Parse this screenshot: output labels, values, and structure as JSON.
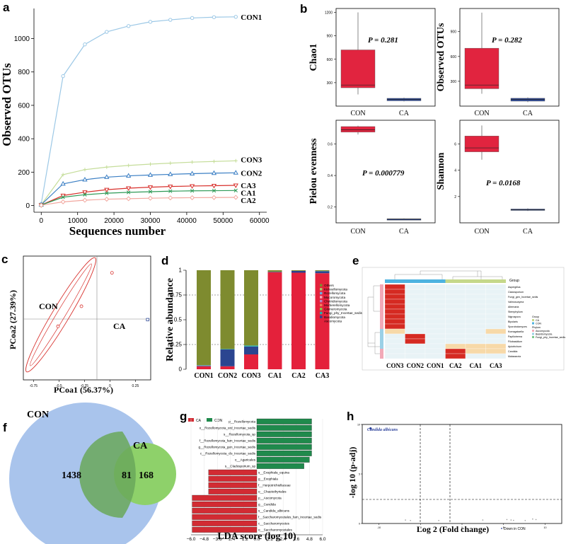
{
  "panel_letters": [
    "a",
    "b",
    "c",
    "d",
    "e",
    "f",
    "g",
    "h"
  ],
  "chart_data": [
    {
      "panel": "a",
      "type": "line",
      "xlabel": "Sequences number",
      "ylabel": "Observed OTUs",
      "xlim": [
        -2000,
        62000
      ],
      "ylim": [
        -40,
        1180
      ],
      "xticks": [
        "0",
        "10000",
        "20000",
        "30000",
        "40000",
        "50000",
        "60000"
      ],
      "yticks": [
        "0",
        "200",
        "400",
        "600",
        "800",
        "1000"
      ],
      "x": [
        0,
        6000,
        12000,
        18000,
        24000,
        30000,
        35500,
        41500,
        47500,
        53500
      ],
      "series": [
        {
          "name": "CON1",
          "color": "#9cc8e6",
          "marker": "circle",
          "values": [
            10,
            775,
            965,
            1040,
            1075,
            1100,
            1112,
            1123,
            1128,
            1130
          ]
        },
        {
          "name": "CON3",
          "color": "#c5dd9a",
          "marker": "plus",
          "values": [
            5,
            185,
            215,
            230,
            240,
            248,
            254,
            260,
            264,
            268
          ]
        },
        {
          "name": "CON2",
          "color": "#3b7fc4",
          "marker": "triangle",
          "values": [
            5,
            130,
            155,
            170,
            178,
            183,
            187,
            191,
            194,
            196
          ]
        },
        {
          "name": "CA3",
          "color": "#d8302c",
          "marker": "tri-down",
          "values": [
            3,
            60,
            80,
            95,
            104,
            110,
            114,
            117,
            119,
            121
          ]
        },
        {
          "name": "CA1",
          "color": "#2f9a57",
          "marker": "x",
          "values": [
            3,
            50,
            65,
            74,
            79,
            83,
            86,
            88,
            89,
            90
          ]
        },
        {
          "name": "CA2",
          "color": "#f2a79f",
          "marker": "diamond",
          "values": [
            2,
            22,
            32,
            38,
            41,
            44,
            46,
            47,
            48,
            49
          ]
        }
      ]
    },
    {
      "panel": "b",
      "type": "box",
      "categories": [
        "CON",
        "CA"
      ],
      "subplots": [
        {
          "ylabel": "Chao1",
          "p": "P = 0.281",
          "ylim": [
            0,
            1250
          ],
          "yticks": [
            "300",
            "600",
            "900",
            "1200"
          ],
          "CON": {
            "min": 150,
            "q1": 235,
            "median": 270,
            "q3": 720,
            "max": 1200
          },
          "CA": {
            "min": 60,
            "q1": 68,
            "median": 85,
            "q3": 100,
            "max": 108
          }
        },
        {
          "ylabel": "Observed OTUs",
          "p": "P = 0.282",
          "ylim": [
            0,
            1180
          ],
          "yticks": [
            "300",
            "600",
            "900"
          ],
          "CON": {
            "min": 150,
            "q1": 210,
            "median": 255,
            "q3": 700,
            "max": 1130
          },
          "CA": {
            "min": 48,
            "q1": 60,
            "median": 80,
            "q3": 95,
            "max": 105
          }
        },
        {
          "ylabel": "Pielou evenness",
          "p": "P = 0.000779",
          "ylim": [
            0.1,
            0.75
          ],
          "yticks": [
            "0.2",
            "0.4",
            "0.6"
          ],
          "CON": {
            "min": 0.66,
            "q1": 0.675,
            "median": 0.69,
            "q3": 0.71,
            "max": 0.715
          },
          "CA": {
            "min": 0.118,
            "q1": 0.121,
            "median": 0.123,
            "q3": 0.126,
            "max": 0.128
          }
        },
        {
          "ylabel": "Shannon",
          "p": "P = 0.0168",
          "ylim": [
            0,
            7.8
          ],
          "yticks": [
            "2",
            "4",
            "6"
          ],
          "CON": {
            "min": 4.8,
            "q1": 5.4,
            "median": 5.7,
            "q3": 6.6,
            "max": 7.4
          },
          "CA": {
            "min": 0.9,
            "q1": 0.95,
            "median": 1.0,
            "q3": 1.05,
            "max": 1.1
          }
        }
      ]
    },
    {
      "panel": "c",
      "type": "scatter",
      "xlabel": "PCoa1 (56.37%)",
      "ylabel": "PCoa2 (27.39%)",
      "xlim": [
        -0.85,
        0.4
      ],
      "ylim": [
        -0.9,
        0.95
      ],
      "xticks": [
        "-0.75",
        "-0.5",
        "-0.25",
        "0",
        "0.25"
      ],
      "group_labels": [
        "CON",
        "CA"
      ],
      "points": [
        {
          "group": "CON",
          "x": -0.51,
          "y": -0.1
        },
        {
          "group": "CON",
          "x": -0.28,
          "y": 0.2
        },
        {
          "group": "CON",
          "x": 0.02,
          "y": 0.7
        },
        {
          "group": "CA",
          "x": 0.37,
          "y": 0.0
        }
      ]
    },
    {
      "panel": "d",
      "type": "stacked-bar",
      "ylabel": "Relative abundance",
      "ylim": [
        0,
        1
      ],
      "yticks": [
        "0",
        "0.25",
        "0.5",
        "0.75",
        "1"
      ],
      "categories": [
        "CON1",
        "CON2",
        "CON3",
        "CA1",
        "CA2",
        "CA3"
      ],
      "legend": [
        "Others",
        "Kickxellomycota",
        "Rozellomycota",
        "Mucoromycota",
        "Chytridiomycota",
        "Mortierellomycota",
        "Glomeromycota",
        "Fungi_phy_Incertae_sedis",
        "Basidiomycota",
        "Ascomycota"
      ],
      "series": [
        {
          "name": "Ascomycota",
          "color": "#e4213b",
          "values": [
            0.03,
            0.03,
            0.15,
            0.98,
            0.975,
            0.97
          ]
        },
        {
          "name": "Basidiomycota",
          "color": "#2b4590",
          "values": [
            0.005,
            0.17,
            0.08,
            0.005,
            0.018,
            0.02
          ]
        },
        {
          "name": "Fungi_phy_Incertae_sedis",
          "color": "#26b1ad",
          "values": [
            0.0,
            0.005,
            0.01,
            0.0,
            0.0,
            0.002
          ]
        },
        {
          "name": "Glomeromycota",
          "color": "#8ac94b",
          "values": [
            0.0,
            0.0,
            0.0,
            0.0,
            0.0,
            0.0
          ]
        },
        {
          "name": "Mortierellomycota",
          "color": "#f07d5c",
          "values": [
            0.0,
            0.0,
            0.0,
            0.0,
            0.0,
            0.0
          ]
        },
        {
          "name": "Chytridiomycota",
          "color": "#b886c1",
          "values": [
            0.0,
            0.0,
            0.0,
            0.0,
            0.0,
            0.0
          ]
        },
        {
          "name": "Mucoromycota",
          "color": "#f5a6b8",
          "values": [
            0.0,
            0.0,
            0.0,
            0.0,
            0.0,
            0.0
          ]
        },
        {
          "name": "Rozellomycota",
          "color": "#6aaee0",
          "values": [
            0.005,
            0.0,
            0.0,
            0.0,
            0.0,
            0.0
          ]
        },
        {
          "name": "Kickxellomycota",
          "color": "#a6cc6b",
          "values": [
            0.0,
            0.0,
            0.0,
            0.0,
            0.0,
            0.0
          ]
        },
        {
          "name": "Others",
          "color": "#7e8b2f",
          "values": [
            0.96,
            0.795,
            0.76,
            0.015,
            0.007,
            0.008
          ]
        }
      ]
    },
    {
      "panel": "e",
      "type": "heatmap",
      "columns": [
        "CON3",
        "CON2",
        "CON1",
        "CA2",
        "CA1",
        "CA3"
      ],
      "rows": [
        "Aspergillus",
        "Cladosporium",
        "Fungi_gen_Incertae_sedis",
        "Valmosozyma",
        "Alternaria",
        "Stemphylium",
        "Nigrospora",
        "Bipolaris",
        "Sporobolomyces",
        "Komagataella",
        "Papiliotrema",
        "Filobasidium",
        "Apiotrichum",
        "Candida",
        "Malassezia"
      ],
      "group_row_label": "Group",
      "legend_title_group": "Group",
      "legend_groups": [
        "CA",
        "CON"
      ],
      "legend_title_phylum": "Phylum",
      "legend_phyla": [
        "Ascomycota",
        "Basidiomycota",
        "Fungi_phy_Incertae_sedis"
      ],
      "values": [
        [
          3,
          0,
          0,
          0,
          0,
          0
        ],
        [
          3,
          0,
          0,
          0,
          0,
          0
        ],
        [
          3,
          0,
          0,
          0,
          0,
          0
        ],
        [
          3,
          0,
          0,
          0,
          0,
          0
        ],
        [
          3,
          0,
          0,
          0,
          0,
          0
        ],
        [
          3,
          0,
          0,
          0,
          0,
          0
        ],
        [
          3,
          0,
          0,
          0,
          0,
          0
        ],
        [
          3,
          0,
          0,
          0,
          0,
          0
        ],
        [
          3,
          0,
          0,
          0,
          0,
          0
        ],
        [
          1,
          0,
          0,
          0,
          0,
          1
        ],
        [
          0,
          3,
          0,
          0,
          0,
          0
        ],
        [
          0,
          3,
          0,
          0,
          0,
          0
        ],
        [
          0,
          0,
          0,
          1,
          1,
          1
        ],
        [
          0,
          0,
          0,
          3,
          1,
          1
        ],
        [
          0,
          0,
          0,
          3,
          0,
          0
        ]
      ]
    },
    {
      "panel": "f",
      "type": "venn",
      "sets": [
        {
          "name": "CON",
          "unique": 1438,
          "color": "#a9c4ec"
        },
        {
          "name": "CA",
          "unique": 168,
          "color": "#8ed16a"
        }
      ],
      "shared": 81
    },
    {
      "panel": "g",
      "type": "bar",
      "xlabel": "LDA score (log 10)",
      "xlim": [
        -6.0,
        6.0
      ],
      "xticks": [
        "−6.0",
        "−4.8",
        "−3.6",
        "−2.4",
        "−1.2",
        "0.0",
        "1.2",
        "2.4",
        "3.6",
        "4.8",
        "6.0"
      ],
      "legend": [
        {
          "name": "CA",
          "color": "#d22b33"
        },
        {
          "name": "CON",
          "color": "#1f8a4c"
        }
      ],
      "bars": [
        {
          "label": "p__Rozellomycota",
          "value": 5.0,
          "group": "CON"
        },
        {
          "label": "o__Rozellomycota_ord_Incertae_sedis",
          "value": 5.0,
          "group": "CON"
        },
        {
          "label": "s__Rozellomycota_sp",
          "value": 5.0,
          "group": "CON"
        },
        {
          "label": "f__Rozellomycota_fam_Incertae_sedis",
          "value": 5.0,
          "group": "CON"
        },
        {
          "label": "g__Rozellomycota_gen_Incertae_sedis",
          "value": 5.0,
          "group": "CON"
        },
        {
          "label": "c__Rozellomycota_cls_Incertae_sedis",
          "value": 5.0,
          "group": "CON"
        },
        {
          "label": "o__Agaricales",
          "value": 4.8,
          "group": "CON"
        },
        {
          "label": "s__Cladosporium_sp",
          "value": 4.3,
          "group": "CON"
        },
        {
          "label": "s__Exophiala_equina",
          "value": -4.4,
          "group": "CA"
        },
        {
          "label": "g__Exophiala",
          "value": -4.4,
          "group": "CA"
        },
        {
          "label": "f__Herpotrichiellaceae",
          "value": -4.4,
          "group": "CA"
        },
        {
          "label": "o__Chaetothyriales",
          "value": -4.4,
          "group": "CA"
        },
        {
          "label": "p__Ascomycota",
          "value": -5.9,
          "group": "CA"
        },
        {
          "label": "g__Candida",
          "value": -5.9,
          "group": "CA"
        },
        {
          "label": "s__Candida_albicans",
          "value": -5.9,
          "group": "CA"
        },
        {
          "label": "f__Saccharomycetales_fam_Incertae_sedis",
          "value": -5.9,
          "group": "CA"
        },
        {
          "label": "c__Saccharomycetes",
          "value": -5.9,
          "group": "CA"
        },
        {
          "label": "o__Saccharomycetales",
          "value": -5.9,
          "group": "CA"
        }
      ]
    },
    {
      "panel": "h",
      "type": "scatter",
      "xlabel": "Log 2 (Fold change)",
      "ylabel": "-log 10 (p-adj)",
      "highlight": "Candida albicans",
      "legend_note": "Down in CON",
      "xlim": [
        -12,
        12
      ],
      "ylim": [
        0,
        10
      ],
      "xticks": [
        "-10",
        "-5",
        "0",
        "5",
        "10"
      ],
      "yticks": [
        "0",
        "5",
        "10"
      ],
      "points": [
        {
          "x": -11.0,
          "y": 9.6,
          "sig": true
        },
        {
          "x": -6.8,
          "y": 0.35,
          "sig": false
        },
        {
          "x": -6.2,
          "y": 0.3,
          "sig": false
        },
        {
          "x": -2.8,
          "y": 0.3,
          "sig": false
        },
        {
          "x": 2.5,
          "y": 0.35,
          "sig": false
        },
        {
          "x": 5.4,
          "y": 0.4,
          "sig": false
        },
        {
          "x": 5.9,
          "y": 0.35,
          "sig": false
        },
        {
          "x": 6.2,
          "y": 0.32,
          "sig": false
        },
        {
          "x": 7.6,
          "y": 0.3,
          "sig": false
        },
        {
          "x": 8.5,
          "y": 0.45,
          "sig": false
        },
        {
          "x": 8.9,
          "y": 0.4,
          "sig": false
        }
      ]
    }
  ]
}
